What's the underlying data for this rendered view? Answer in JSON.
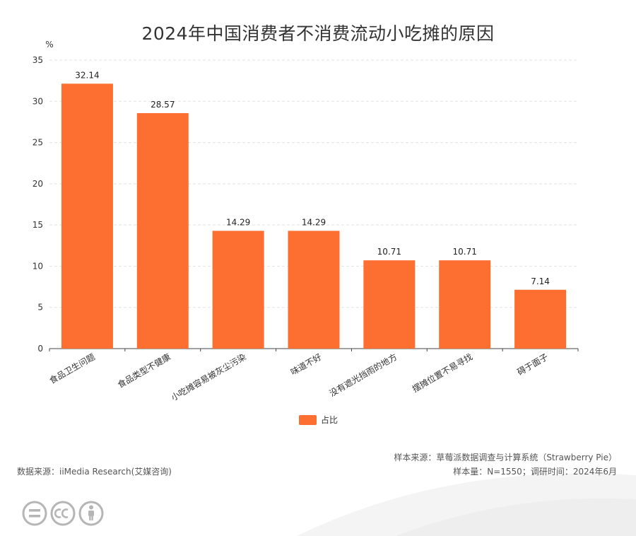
{
  "title": "2024年中国消费者不消费流动小吃摊的原因",
  "chart_data": {
    "type": "bar",
    "categories": [
      "食品卫生问题",
      "食品类型不健康",
      "小吃摊容易被灰尘污染",
      "味道不好",
      "没有遮光挡雨的地方",
      "摆摊位置不易寻找",
      "碍于面子"
    ],
    "series": [
      {
        "name": "占比",
        "values": [
          32.14,
          28.57,
          14.29,
          14.29,
          10.71,
          10.71,
          7.14
        ]
      }
    ],
    "value_labels": [
      "32.14",
      "28.57",
      "14.29",
      "14.29",
      "10.71",
      "10.71",
      "7.14"
    ],
    "y_unit": "%",
    "ylim": [
      0,
      35
    ],
    "yticks": [
      "0",
      "5",
      "10",
      "15",
      "20",
      "25",
      "30",
      "35"
    ],
    "grid": true,
    "legend_position": "bottom-center",
    "bar_color": "#FD6F30"
  },
  "footer": {
    "source_left": "数据来源：iiMedia Research(艾媒咨询)",
    "sample_source": "样本来源：草莓派数据调查与计算系统（Strawberry Pie）",
    "sample_size": "样本量：N=1550；调研时间：2024年6月"
  },
  "license_icons": [
    "equals-icon",
    "cc-icon",
    "person-icon"
  ]
}
